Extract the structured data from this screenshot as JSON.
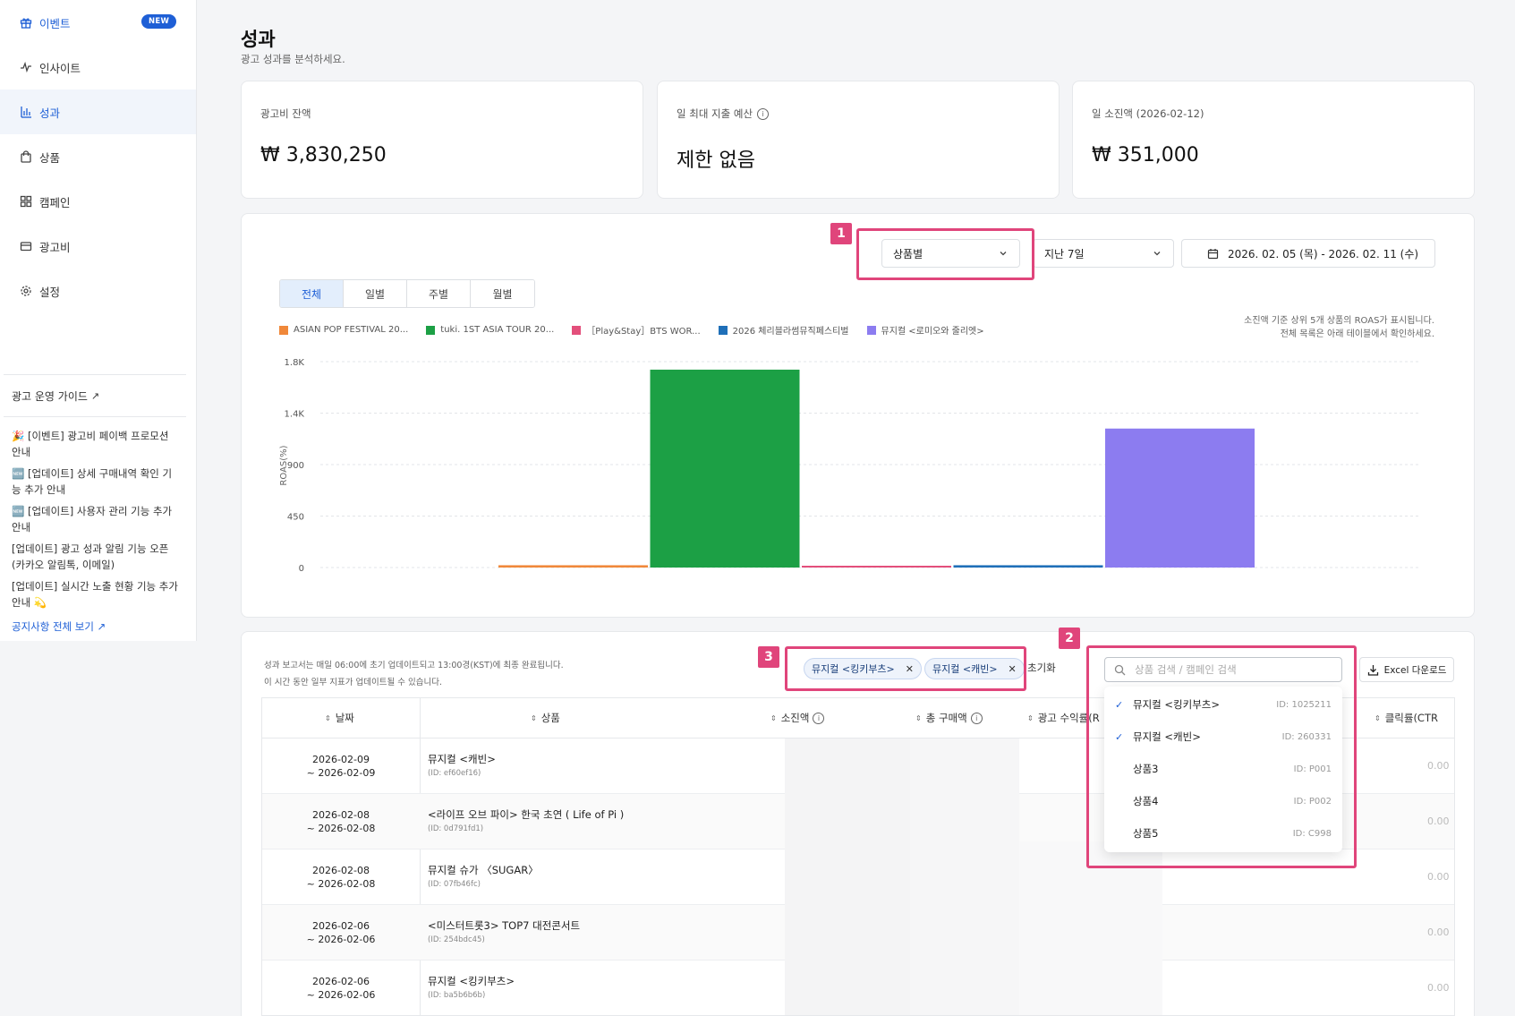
{
  "sidebar": {
    "items": [
      {
        "label": "이벤트",
        "icon": "gift-icon",
        "badge": "NEW"
      },
      {
        "label": "인사이트",
        "icon": "pulse-icon"
      },
      {
        "label": "성과",
        "icon": "bar-chart-icon"
      },
      {
        "label": "상품",
        "icon": "shopping-bag-icon"
      },
      {
        "label": "캠페인",
        "icon": "grid-icon"
      },
      {
        "label": "광고비",
        "icon": "wallet-icon"
      },
      {
        "label": "설정",
        "icon": "gear-icon"
      }
    ],
    "guide": "광고 운영 가이드",
    "notices": [
      "🎉 [이벤트] 광고비 페이백 프로모션 안내",
      "🆕 [업데이트] 상세 구매내역 확인 기능 추가 안내",
      "🆕 [업데이트] 사용자 관리 기능 추가 안내",
      "[업데이트] 광고 성과 알림 기능 오픈 (카카오 알림톡, 이메일)",
      "[업데이트] 실시간 노출 현황 기능 추가 안내 💫"
    ],
    "all_notices": "공지사항 전체 보기"
  },
  "header": {
    "title": "성과",
    "subtitle": "광고 성과를 분석하세요."
  },
  "summary": [
    {
      "label": "광고비 잔액",
      "value": "₩ 3,830,250"
    },
    {
      "label": "일 최대 지출 예산",
      "value": "제한 없음"
    },
    {
      "label": "일 소진액 (2026-02-12)",
      "value": "₩ 351,000"
    }
  ],
  "filters": {
    "group_by": "상품별",
    "period": "지난 7일",
    "date_range": "2026. 02. 05 (목) - 2026. 02. 11 (수)"
  },
  "annotations": [
    "1",
    "2",
    "3"
  ],
  "tabs": [
    "전체",
    "일별",
    "주별",
    "월별"
  ],
  "chart_note": [
    "소진액 기준 상위 5개 상품의 ROAS가 표시됩니다.",
    "전체 목록은 아래 테이블에서 확인하세요."
  ],
  "chart_data": {
    "type": "bar",
    "ylabel": "ROAS(%)",
    "y_ticks": [
      "1.8K",
      "1.4K",
      "900",
      "450",
      "0"
    ],
    "ylim": [
      0,
      1800
    ],
    "categories": [
      "ASIAN POP FESTIVAL 20...",
      "tuki. 1ST ASIA TOUR 20...",
      "［Play&Stay］BTS WOR...",
      "2026 체리블라썸뮤직페스티벌",
      "뮤지컬 <로미오와 줄리엣>"
    ],
    "values": [
      20,
      1730,
      15,
      20,
      1215
    ],
    "colors": [
      "#f0883a",
      "#1ca045",
      "#e34f7b",
      "#1f6fb8",
      "#8c7cf0"
    ]
  },
  "table_note": [
    "성과 보고서는 매일 06:00에 초기 업데이트되고 13:00경(KST)에 최종 완료됩니다.",
    "이 시간 동안 일부 지표가 업데이트될 수 있습니다."
  ],
  "chips": [
    "뮤지컬 <킹키부츠>",
    "뮤지컬 <캐빈>"
  ],
  "reset_label": "초기화",
  "search_placeholder": "상품 검색 / 캠페인 검색",
  "excel_label": "Excel 다운로드",
  "columns": [
    "날짜",
    "상품",
    "소진액",
    "총 구매액",
    "광고 수익률(R",
    "클릭률(CTR"
  ],
  "rows": [
    {
      "date1": "2026-02-09",
      "date2": "~ 2026-02-09",
      "name": "뮤지컬 <캐빈>",
      "id": "(ID: ef60ef16)",
      "ctr": "0.00"
    },
    {
      "date1": "2026-02-08",
      "date2": "~ 2026-02-08",
      "name": "<라이프 오브 파이> 한국 초연 ( Life of Pi )",
      "id": "(ID: 0d791fd1)",
      "ctr": "0.00"
    },
    {
      "date1": "2026-02-08",
      "date2": "~ 2026-02-08",
      "name": "뮤지컬 슈가 〈SUGAR〉",
      "id": "(ID: 07fb46fc)",
      "ctr": "0.00"
    },
    {
      "date1": "2026-02-06",
      "date2": "~ 2026-02-06",
      "name": "<미스터트롯3> TOP7 대전콘서트",
      "id": "(ID: 254bdc45)",
      "ctr": "0.00"
    },
    {
      "date1": "2026-02-06",
      "date2": "~ 2026-02-06",
      "name": "뮤지컬 <킹키부츠>",
      "id": "(ID: ba5b6b6b)",
      "ctr": "0.00"
    }
  ],
  "dropdown_options": [
    {
      "name": "뮤지컬 <킹키부츠>",
      "id": "ID: 1025211",
      "checked": true
    },
    {
      "name": "뮤지컬 <캐빈>",
      "id": "ID: 260331",
      "checked": true
    },
    {
      "name": "상품3",
      "id": "ID: P001",
      "checked": false
    },
    {
      "name": "상품4",
      "id": "ID: P002",
      "checked": false
    },
    {
      "name": "상품5",
      "id": "ID: C998",
      "checked": false
    }
  ]
}
